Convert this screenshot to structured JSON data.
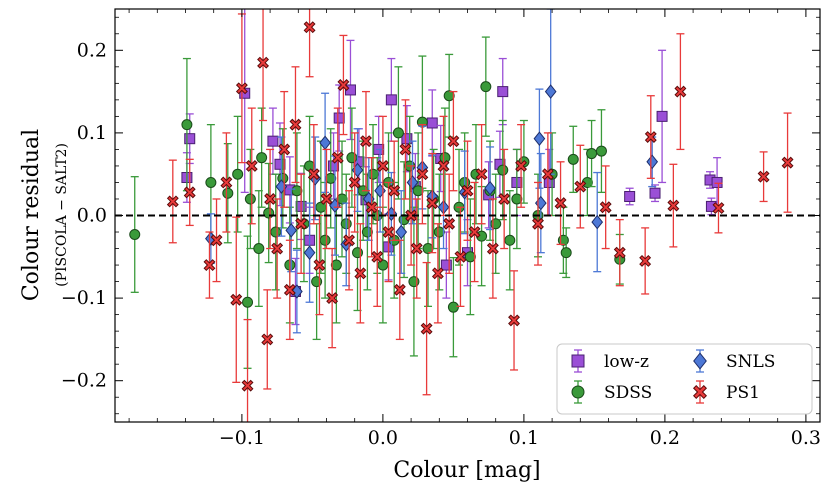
{
  "chart_data": {
    "type": "scatter",
    "xlabel": "Colour [mag]",
    "ylabel": "Colour residual",
    "ylabel_sub": "(PISCOLA − SALT2)",
    "xlim": [
      -0.19,
      0.31
    ],
    "ylim": [
      -0.25,
      0.25
    ],
    "xticks": [
      -0.1,
      0.0,
      0.1,
      0.2,
      0.3
    ],
    "xtick_labels": [
      "−0.1",
      "0.0",
      "0.1",
      "0.2",
      "0.3"
    ],
    "yticks": [
      -0.2,
      -0.1,
      0.0,
      0.1,
      0.2
    ],
    "ytick_labels": [
      "−0.2",
      "−0.1",
      "0.0",
      "0.1",
      "0.2"
    ],
    "reference_line": {
      "y": 0.0,
      "style": "dashed",
      "color": "#000000"
    },
    "legend": {
      "placement": "bottom-right",
      "columns": 2
    },
    "series": [
      {
        "name": "low-z",
        "marker": "square",
        "color": "#9a4fd6",
        "edge": "#4a2070",
        "points": [
          {
            "x": -0.137,
            "y": 0.093,
            "e": 0.03
          },
          {
            "x": -0.139,
            "y": 0.046,
            "e": 0.03
          },
          {
            "x": -0.098,
            "y": 0.148,
            "e": 0.12
          },
          {
            "x": -0.078,
            "y": 0.09,
            "e": 0.04
          },
          {
            "x": -0.073,
            "y": 0.062,
            "e": 0.05
          },
          {
            "x": -0.066,
            "y": 0.031,
            "e": 0.04
          },
          {
            "x": -0.058,
            "y": 0.011,
            "e": 0.04
          },
          {
            "x": -0.052,
            "y": -0.03,
            "e": 0.04
          },
          {
            "x": -0.062,
            "y": -0.092,
            "e": 0.04
          },
          {
            "x": -0.035,
            "y": 0.06,
            "e": 0.04
          },
          {
            "x": -0.031,
            "y": 0.118,
            "e": 0.04
          },
          {
            "x": -0.023,
            "y": 0.152,
            "e": 0.06
          },
          {
            "x": -0.017,
            "y": 0.065,
            "e": 0.04
          },
          {
            "x": -0.012,
            "y": 0.019,
            "e": 0.04
          },
          {
            "x": -0.003,
            "y": 0.08,
            "e": 0.04
          },
          {
            "x": 0.004,
            "y": -0.038,
            "e": 0.04
          },
          {
            "x": 0.006,
            "y": 0.14,
            "e": 0.05
          },
          {
            "x": 0.017,
            "y": 0.093,
            "e": 0.04
          },
          {
            "x": 0.023,
            "y": 0.035,
            "e": 0.04
          },
          {
            "x": 0.035,
            "y": 0.112,
            "e": 0.04
          },
          {
            "x": 0.041,
            "y": 0.069,
            "e": 0.04
          },
          {
            "x": 0.045,
            "y": -0.06,
            "e": 0.04
          },
          {
            "x": 0.06,
            "y": -0.045,
            "e": 0.04
          },
          {
            "x": 0.075,
            "y": 0.025,
            "e": 0.04
          },
          {
            "x": 0.083,
            "y": 0.062,
            "e": 0.04
          },
          {
            "x": 0.085,
            "y": 0.15,
            "e": 0.04
          },
          {
            "x": 0.095,
            "y": 0.04,
            "e": 0.04
          },
          {
            "x": 0.118,
            "y": 0.04,
            "e": 0.04
          },
          {
            "x": 0.175,
            "y": 0.023,
            "e": 0.01
          },
          {
            "x": 0.193,
            "y": 0.027,
            "e": 0.01
          },
          {
            "x": 0.198,
            "y": 0.12,
            "e": 0.08
          },
          {
            "x": 0.232,
            "y": 0.043,
            "e": 0.01
          },
          {
            "x": 0.233,
            "y": 0.011,
            "e": 0.01
          },
          {
            "x": 0.237,
            "y": 0.04,
            "e": 0.03
          }
        ]
      },
      {
        "name": "SDSS",
        "marker": "circle",
        "color": "#3a9a3a",
        "edge": "#1a4a1a",
        "points": [
          {
            "x": -0.176,
            "y": -0.023,
            "e": 0.07
          },
          {
            "x": -0.139,
            "y": 0.11,
            "e": 0.08
          },
          {
            "x": -0.122,
            "y": 0.04,
            "e": 0.07
          },
          {
            "x": -0.11,
            "y": 0.027,
            "e": 0.06
          },
          {
            "x": -0.103,
            "y": 0.05,
            "e": 0.07
          },
          {
            "x": -0.096,
            "y": -0.105,
            "e": 0.08
          },
          {
            "x": -0.094,
            "y": 0.02,
            "e": 0.06
          },
          {
            "x": -0.088,
            "y": -0.04,
            "e": 0.07
          },
          {
            "x": -0.086,
            "y": 0.07,
            "e": 0.06
          },
          {
            "x": -0.081,
            "y": 0.003,
            "e": 0.06
          },
          {
            "x": -0.076,
            "y": -0.02,
            "e": 0.07
          },
          {
            "x": -0.071,
            "y": 0.045,
            "e": 0.06
          },
          {
            "x": -0.066,
            "y": -0.06,
            "e": 0.07
          },
          {
            "x": -0.061,
            "y": 0.03,
            "e": 0.07
          },
          {
            "x": -0.056,
            "y": -0.01,
            "e": 0.07
          },
          {
            "x": -0.052,
            "y": 0.06,
            "e": 0.06
          },
          {
            "x": -0.047,
            "y": -0.08,
            "e": 0.07
          },
          {
            "x": -0.044,
            "y": 0.01,
            "e": 0.08
          },
          {
            "x": -0.041,
            "y": -0.03,
            "e": 0.07
          },
          {
            "x": -0.037,
            "y": 0.045,
            "e": 0.06
          },
          {
            "x": -0.033,
            "y": -0.06,
            "e": 0.07
          },
          {
            "x": -0.029,
            "y": 0.02,
            "e": 0.07
          },
          {
            "x": -0.026,
            "y": -0.01,
            "e": 0.06
          },
          {
            "x": -0.022,
            "y": 0.07,
            "e": 0.06
          },
          {
            "x": -0.018,
            "y": -0.045,
            "e": 0.07
          },
          {
            "x": -0.014,
            "y": 0.03,
            "e": 0.06
          },
          {
            "x": -0.011,
            "y": -0.02,
            "e": 0.07
          },
          {
            "x": -0.007,
            "y": 0.05,
            "e": 0.06
          },
          {
            "x": -0.004,
            "y": 0.0,
            "e": 0.07
          },
          {
            "x": 0.0,
            "y": -0.06,
            "e": 0.07
          },
          {
            "x": 0.004,
            "y": 0.04,
            "e": 0.06
          },
          {
            "x": 0.008,
            "y": -0.03,
            "e": 0.07
          },
          {
            "x": 0.011,
            "y": 0.1,
            "e": 0.08
          },
          {
            "x": 0.015,
            "y": -0.005,
            "e": 0.07
          },
          {
            "x": 0.019,
            "y": 0.06,
            "e": 0.06
          },
          {
            "x": 0.022,
            "y": -0.08,
            "e": 0.09
          },
          {
            "x": 0.025,
            "y": 0.03,
            "e": 0.07
          },
          {
            "x": 0.028,
            "y": 0.113,
            "e": 0.08
          },
          {
            "x": 0.032,
            "y": -0.04,
            "e": 0.07
          },
          {
            "x": 0.036,
            "y": 0.02,
            "e": 0.06
          },
          {
            "x": 0.04,
            "y": -0.02,
            "e": 0.07
          },
          {
            "x": 0.044,
            "y": 0.07,
            "e": 0.06
          },
          {
            "x": 0.047,
            "y": 0.145,
            "e": 0.05
          },
          {
            "x": 0.05,
            "y": -0.111,
            "e": 0.06
          },
          {
            "x": 0.054,
            "y": 0.01,
            "e": 0.07
          },
          {
            "x": 0.058,
            "y": 0.04,
            "e": 0.06
          },
          {
            "x": 0.062,
            "y": -0.05,
            "e": 0.07
          },
          {
            "x": 0.066,
            "y": 0.05,
            "e": 0.06
          },
          {
            "x": 0.07,
            "y": -0.025,
            "e": 0.06
          },
          {
            "x": 0.073,
            "y": 0.156,
            "e": 0.06
          },
          {
            "x": 0.076,
            "y": 0.03,
            "e": 0.06
          },
          {
            "x": 0.08,
            "y": -0.01,
            "e": 0.06
          },
          {
            "x": 0.085,
            "y": 0.055,
            "e": 0.06
          },
          {
            "x": 0.09,
            "y": -0.03,
            "e": 0.06
          },
          {
            "x": 0.095,
            "y": 0.02,
            "e": 0.06
          },
          {
            "x": 0.1,
            "y": 0.065,
            "e": 0.05
          },
          {
            "x": 0.11,
            "y": 0.0,
            "e": 0.05
          },
          {
            "x": 0.12,
            "y": 0.05,
            "e": 0.05
          },
          {
            "x": 0.128,
            "y": -0.03,
            "e": 0.04
          },
          {
            "x": 0.135,
            "y": 0.068,
            "e": 0.04
          },
          {
            "x": 0.145,
            "y": 0.04,
            "e": 0.04
          },
          {
            "x": 0.148,
            "y": 0.075,
            "e": 0.04
          },
          {
            "x": 0.155,
            "y": 0.078,
            "e": 0.05
          },
          {
            "x": 0.168,
            "y": -0.053,
            "e": 0.03
          },
          {
            "x": 0.13,
            "y": -0.045,
            "e": 0.03
          }
        ]
      },
      {
        "name": "SNLS",
        "marker": "diamond",
        "color": "#4d78d6",
        "edge": "#1e2e6a",
        "points": [
          {
            "x": -0.122,
            "y": -0.028,
            "e": 0.03
          },
          {
            "x": -0.072,
            "y": 0.035,
            "e": 0.06
          },
          {
            "x": -0.065,
            "y": -0.018,
            "e": 0.05
          },
          {
            "x": -0.061,
            "y": -0.092,
            "e": 0.05
          },
          {
            "x": -0.052,
            "y": -0.045,
            "e": 0.06
          },
          {
            "x": -0.048,
            "y": 0.045,
            "e": 0.05
          },
          {
            "x": -0.041,
            "y": 0.088,
            "e": 0.06
          },
          {
            "x": -0.034,
            "y": 0.012,
            "e": 0.06
          },
          {
            "x": -0.026,
            "y": -0.035,
            "e": 0.05
          },
          {
            "x": -0.018,
            "y": 0.055,
            "e": 0.05
          },
          {
            "x": -0.01,
            "y": 0.02,
            "e": 0.05
          },
          {
            "x": -0.002,
            "y": 0.03,
            "e": 0.05
          },
          {
            "x": 0.006,
            "y": 0.002,
            "e": 0.05
          },
          {
            "x": 0.013,
            "y": -0.02,
            "e": 0.05
          },
          {
            "x": 0.021,
            "y": 0.04,
            "e": 0.05
          },
          {
            "x": 0.028,
            "y": 0.058,
            "e": 0.05
          },
          {
            "x": 0.035,
            "y": 0.023,
            "e": 0.05
          },
          {
            "x": 0.043,
            "y": 0.01,
            "e": 0.05
          },
          {
            "x": 0.058,
            "y": 0.028,
            "e": 0.05
          },
          {
            "x": 0.076,
            "y": 0.033,
            "e": 0.05
          },
          {
            "x": 0.111,
            "y": 0.093,
            "e": 0.06
          },
          {
            "x": 0.112,
            "y": 0.015,
            "e": 0.06
          },
          {
            "x": 0.119,
            "y": 0.15,
            "e": 0.1
          },
          {
            "x": 0.152,
            "y": -0.008,
            "e": 0.06
          },
          {
            "x": 0.191,
            "y": 0.065,
            "e": 0.03
          }
        ]
      },
      {
        "name": "PS1",
        "marker": "x-filled",
        "color": "#e83a3a",
        "edge": "#5a0a0a",
        "points": [
          {
            "x": -0.149,
            "y": 0.017,
            "e": 0.05
          },
          {
            "x": -0.137,
            "y": 0.028,
            "e": 0.04
          },
          {
            "x": -0.123,
            "y": -0.06,
            "e": 0.04
          },
          {
            "x": -0.118,
            "y": -0.03,
            "e": 0.05
          },
          {
            "x": -0.111,
            "y": 0.04,
            "e": 0.06
          },
          {
            "x": -0.104,
            "y": -0.102,
            "e": 0.1
          },
          {
            "x": -0.1,
            "y": 0.154,
            "e": 0.09
          },
          {
            "x": -0.096,
            "y": -0.206,
            "e": 0.08
          },
          {
            "x": -0.093,
            "y": 0.06,
            "e": 0.07
          },
          {
            "x": -0.085,
            "y": 0.185,
            "e": 0.07
          },
          {
            "x": -0.082,
            "y": -0.15,
            "e": 0.06
          },
          {
            "x": -0.08,
            "y": 0.02,
            "e": 0.06
          },
          {
            "x": -0.075,
            "y": -0.04,
            "e": 0.06
          },
          {
            "x": -0.07,
            "y": 0.08,
            "e": 0.07
          },
          {
            "x": -0.066,
            "y": -0.09,
            "e": 0.06
          },
          {
            "x": -0.062,
            "y": 0.11,
            "e": 0.07
          },
          {
            "x": -0.058,
            "y": -0.01,
            "e": 0.06
          },
          {
            "x": -0.052,
            "y": 0.228,
            "e": 0.06
          },
          {
            "x": -0.049,
            "y": 0.05,
            "e": 0.06
          },
          {
            "x": -0.045,
            "y": -0.06,
            "e": 0.06
          },
          {
            "x": -0.04,
            "y": 0.02,
            "e": 0.06
          },
          {
            "x": -0.036,
            "y": -0.1,
            "e": 0.06
          },
          {
            "x": -0.032,
            "y": 0.07,
            "e": 0.06
          },
          {
            "x": -0.028,
            "y": 0.158,
            "e": 0.06
          },
          {
            "x": -0.024,
            "y": -0.03,
            "e": 0.06
          },
          {
            "x": -0.02,
            "y": 0.04,
            "e": 0.06
          },
          {
            "x": -0.016,
            "y": -0.07,
            "e": 0.06
          },
          {
            "x": -0.012,
            "y": 0.09,
            "e": 0.06
          },
          {
            "x": -0.008,
            "y": 0.01,
            "e": 0.06
          },
          {
            "x": -0.004,
            "y": -0.05,
            "e": 0.06
          },
          {
            "x": 0.0,
            "y": 0.06,
            "e": 0.06
          },
          {
            "x": 0.004,
            "y": -0.02,
            "e": 0.06
          },
          {
            "x": 0.008,
            "y": 0.03,
            "e": 0.06
          },
          {
            "x": 0.012,
            "y": -0.09,
            "e": 0.06
          },
          {
            "x": 0.016,
            "y": 0.08,
            "e": 0.06
          },
          {
            "x": 0.02,
            "y": 0.0,
            "e": 0.06
          },
          {
            "x": 0.024,
            "y": -0.04,
            "e": 0.06
          },
          {
            "x": 0.028,
            "y": 0.05,
            "e": 0.06
          },
          {
            "x": 0.031,
            "y": -0.137,
            "e": 0.08
          },
          {
            "x": 0.035,
            "y": 0.015,
            "e": 0.06
          },
          {
            "x": 0.039,
            "y": -0.07,
            "e": 0.06
          },
          {
            "x": 0.043,
            "y": 0.06,
            "e": 0.06
          },
          {
            "x": 0.047,
            "y": -0.01,
            "e": 0.06
          },
          {
            "x": 0.05,
            "y": 0.09,
            "e": 0.06
          },
          {
            "x": 0.055,
            "y": -0.05,
            "e": 0.06
          },
          {
            "x": 0.06,
            "y": 0.03,
            "e": 0.06
          },
          {
            "x": 0.065,
            "y": -0.02,
            "e": 0.06
          },
          {
            "x": 0.07,
            "y": 0.05,
            "e": 0.06
          },
          {
            "x": 0.078,
            "y": -0.04,
            "e": 0.06
          },
          {
            "x": 0.086,
            "y": 0.02,
            "e": 0.06
          },
          {
            "x": 0.093,
            "y": -0.127,
            "e": 0.06
          },
          {
            "x": 0.098,
            "y": 0.06,
            "e": 0.05
          },
          {
            "x": 0.11,
            "y": -0.01,
            "e": 0.05
          },
          {
            "x": 0.117,
            "y": 0.05,
            "e": 0.05
          },
          {
            "x": 0.126,
            "y": 0.015,
            "e": 0.05
          },
          {
            "x": 0.14,
            "y": 0.035,
            "e": 0.05
          },
          {
            "x": 0.158,
            "y": 0.01,
            "e": 0.05
          },
          {
            "x": 0.168,
            "y": -0.045,
            "e": 0.04
          },
          {
            "x": 0.186,
            "y": -0.055,
            "e": 0.04
          },
          {
            "x": 0.19,
            "y": 0.095,
            "e": 0.05
          },
          {
            "x": 0.206,
            "y": 0.012,
            "e": 0.05
          },
          {
            "x": 0.211,
            "y": 0.15,
            "e": 0.07
          },
          {
            "x": 0.238,
            "y": 0.009,
            "e": 0.03
          },
          {
            "x": 0.27,
            "y": 0.047,
            "e": 0.03
          },
          {
            "x": 0.287,
            "y": 0.064,
            "e": 0.06
          }
        ]
      }
    ]
  }
}
